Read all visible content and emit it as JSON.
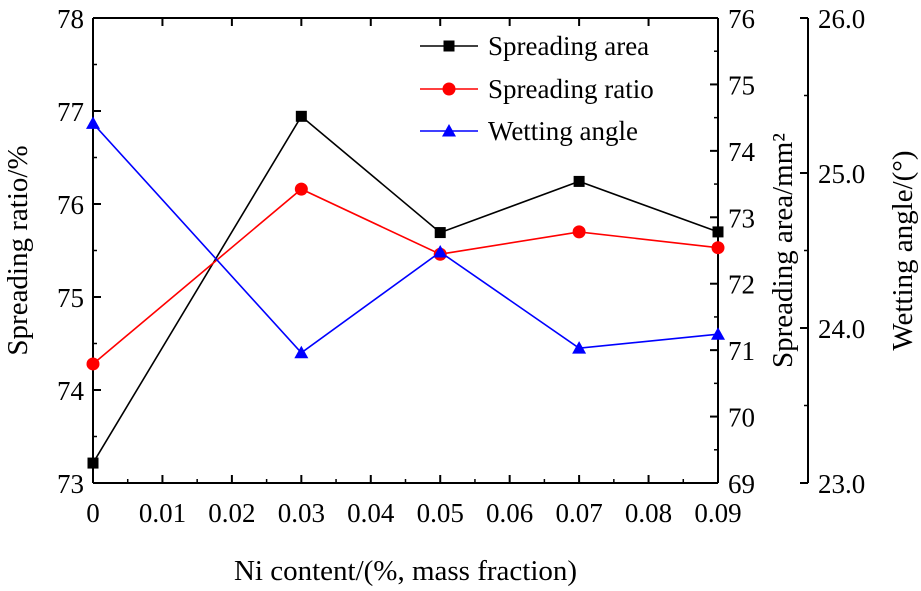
{
  "chart_data": {
    "type": "line",
    "title": "",
    "xlabel": "Ni content/(%, mass fraction)",
    "xlim": [
      0,
      0.09
    ],
    "xticks": [
      "0",
      "0.01",
      "0.02",
      "0.03",
      "0.04",
      "0.05",
      "0.06",
      "0.07",
      "0.08",
      "0.09"
    ],
    "x": [
      0,
      0.03,
      0.05,
      0.07,
      0.09
    ],
    "axes": [
      {
        "id": "ratio",
        "label": "Spreading ratio/%",
        "range": [
          73,
          78
        ],
        "ticks": [
          "73",
          "74",
          "75",
          "76",
          "77",
          "78"
        ]
      },
      {
        "id": "area",
        "label": "Spreading area/mm²",
        "range": [
          69,
          76
        ],
        "ticks": [
          "69",
          "70",
          "71",
          "72",
          "73",
          "74",
          "75",
          "76"
        ]
      },
      {
        "id": "angle",
        "label": "Wetting angle/(°)",
        "range": [
          23.0,
          26.0
        ],
        "ticks": [
          "23.0",
          "24.0",
          "25.0",
          "26.0"
        ]
      }
    ],
    "series": [
      {
        "name": "Spreading area",
        "axis": "area",
        "color": "#000000",
        "marker": "square",
        "values": [
          69.3,
          74.52,
          72.77,
          73.54,
          72.78
        ]
      },
      {
        "name": "Spreading ratio",
        "axis": "ratio",
        "color": "#ff0000",
        "marker": "circle",
        "values": [
          74.28,
          76.16,
          75.46,
          75.7,
          75.53
        ]
      },
      {
        "name": "Wetting angle",
        "axis": "angle",
        "color": "#0000ff",
        "marker": "triangle",
        "values": [
          25.32,
          23.84,
          24.49,
          23.87,
          23.96
        ]
      }
    ],
    "legend_position": "top-right",
    "grid": false
  }
}
